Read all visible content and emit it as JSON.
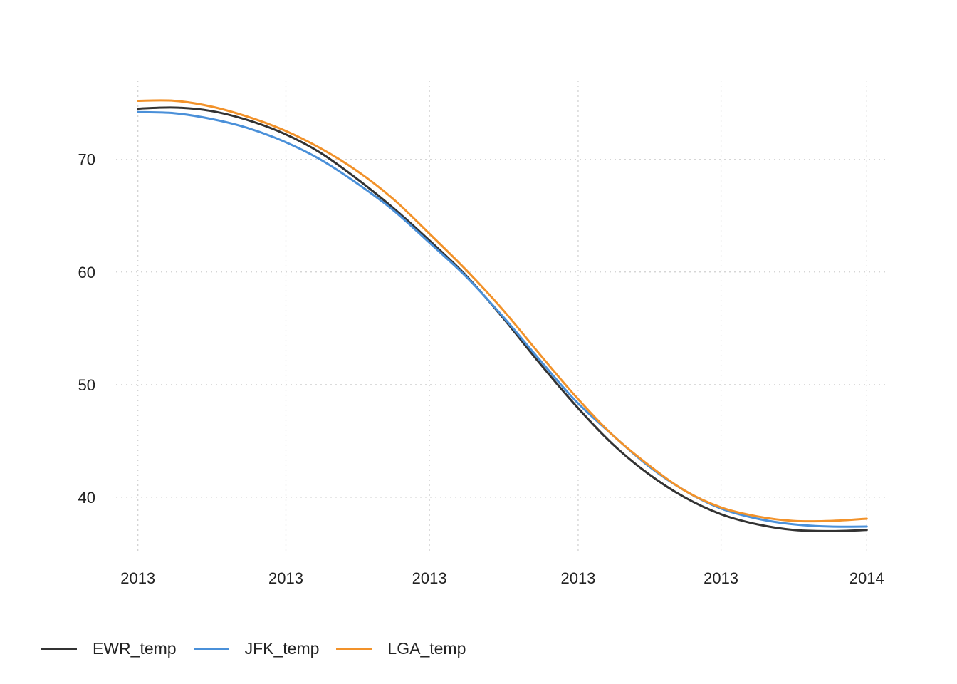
{
  "chart_data": {
    "type": "line",
    "title": "",
    "xlabel": "",
    "ylabel": "",
    "x_tick_labels": [
      "2013",
      "2013",
      "2013",
      "2013",
      "2013",
      "2014"
    ],
    "y_tick_labels": [
      "40",
      "50",
      "60",
      "70"
    ],
    "y_ticks": [
      40,
      50,
      60,
      70
    ],
    "ylim": [
      35,
      77
    ],
    "x": [
      0,
      0.05,
      0.1,
      0.15,
      0.2,
      0.25,
      0.3,
      0.35,
      0.4,
      0.45,
      0.5,
      0.55,
      0.6,
      0.65,
      0.7,
      0.75,
      0.8,
      0.85,
      0.9,
      0.95,
      1.0
    ],
    "xlim": [
      -0.03,
      1.03
    ],
    "x_tick_positions": [
      0,
      0.203,
      0.4,
      0.604,
      0.8,
      1.0
    ],
    "grid": true,
    "legend_position": "bottom-left",
    "series": [
      {
        "name": "EWR_temp",
        "color": "#333333",
        "values": [
          74.5,
          74.6,
          74.3,
          73.5,
          72.3,
          70.6,
          68.3,
          65.7,
          62.8,
          59.7,
          56.0,
          52.0,
          48.2,
          44.8,
          42.1,
          40.0,
          38.5,
          37.6,
          37.1,
          37.0,
          37.1
        ]
      },
      {
        "name": "JFK_temp",
        "color": "#4a90d9",
        "values": [
          74.2,
          74.1,
          73.6,
          72.8,
          71.6,
          70.0,
          67.9,
          65.5,
          62.6,
          59.6,
          56.1,
          52.3,
          48.6,
          45.6,
          42.8,
          40.6,
          39.0,
          38.1,
          37.6,
          37.4,
          37.4
        ]
      },
      {
        "name": "LGA_temp",
        "color": "#f2922a",
        "values": [
          75.2,
          75.2,
          74.7,
          73.8,
          72.6,
          71.0,
          69.0,
          66.5,
          63.4,
          60.2,
          56.7,
          52.8,
          49.0,
          45.6,
          42.9,
          40.6,
          39.1,
          38.3,
          37.9,
          37.9,
          38.1
        ]
      }
    ]
  }
}
